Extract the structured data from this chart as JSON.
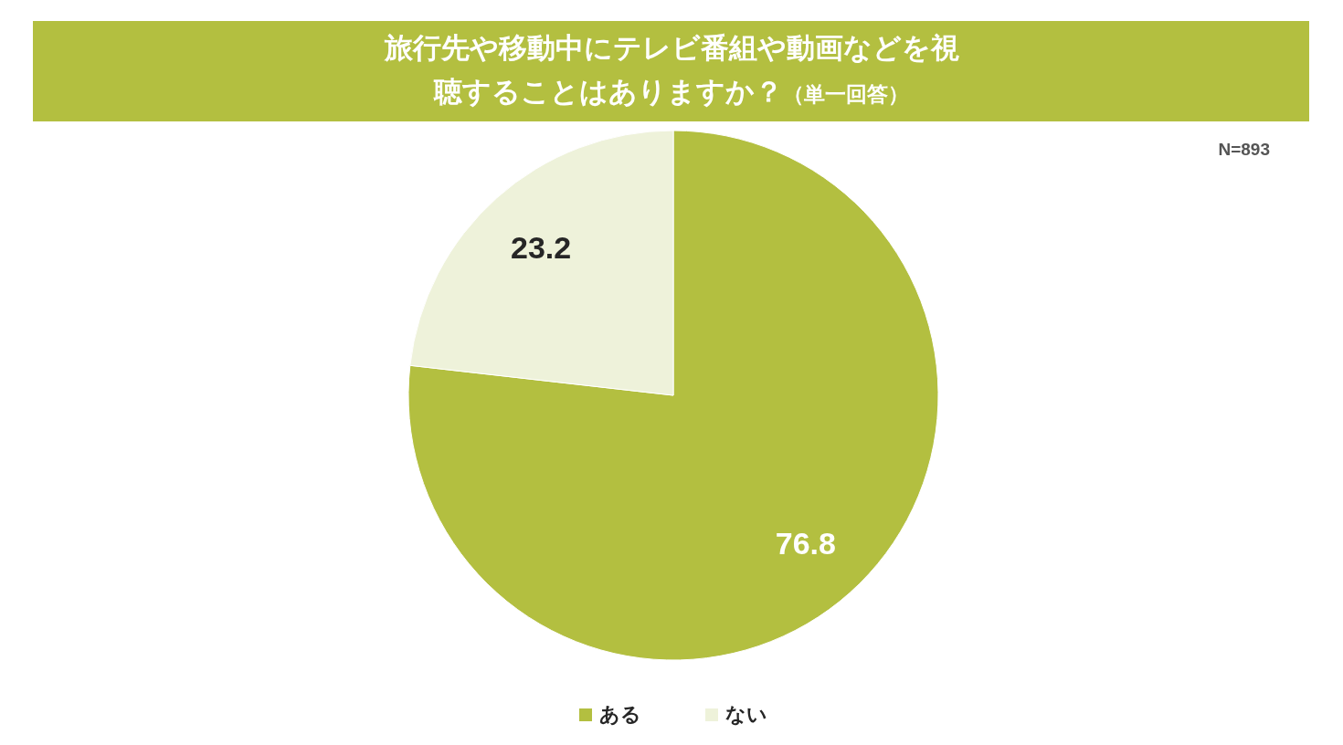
{
  "chart_data": {
    "type": "pie",
    "title": "旅行先や移動中にテレビ番組や動画などを視聴することはありますか？",
    "subtitle": "（単一回答）",
    "categories": [
      "ある",
      "ない"
    ],
    "values": [
      76.8,
      23.2
    ],
    "colors": [
      "#b3bf40",
      "#eef2da"
    ],
    "data_labels": true,
    "legend": "bottom",
    "annotations": [
      "N=893"
    ]
  }
}
